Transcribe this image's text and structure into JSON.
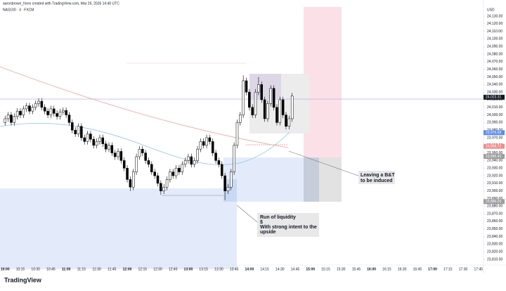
{
  "header": {
    "credit": "aaronbrown_forex created with TradingView.com, Mar 26, 2026 14:40 UTC",
    "symbol": "NAS100 · 3 · FXCM",
    "currency": "USD",
    "brand": "TradingView"
  },
  "chart_data": {
    "type": "candlestick",
    "x": [
      "10:00",
      "10:03",
      "10:06",
      "10:09",
      "10:12",
      "10:15",
      "10:18",
      "10:21",
      "10:24",
      "10:27",
      "10:30",
      "10:33",
      "10:36",
      "10:39",
      "10:42",
      "10:45",
      "10:48",
      "10:51",
      "10:54",
      "10:57",
      "11:00",
      "11:03",
      "11:06",
      "11:09",
      "11:12",
      "11:15",
      "11:18",
      "11:21",
      "11:24",
      "11:27",
      "11:30",
      "11:33",
      "11:36",
      "11:39",
      "11:42",
      "11:45",
      "11:48",
      "11:51",
      "11:54",
      "11:57",
      "12:00",
      "12:03",
      "12:06",
      "12:09",
      "12:12",
      "12:15",
      "12:18",
      "12:21",
      "12:24",
      "12:27",
      "12:30",
      "12:33",
      "12:36",
      "12:39",
      "12:42",
      "12:45",
      "12:48",
      "12:51",
      "12:54",
      "12:57",
      "13:00",
      "13:03",
      "13:06",
      "13:09",
      "13:12",
      "13:15",
      "13:18",
      "13:21",
      "13:24",
      "13:27",
      "13:30",
      "13:33",
      "13:36",
      "13:39",
      "13:42",
      "13:45",
      "13:48",
      "13:51",
      "13:54",
      "13:57",
      "14:00",
      "14:03",
      "14:06",
      "14:09",
      "14:12",
      "14:15",
      "14:18",
      "14:21",
      "14:24",
      "14:27",
      "14:30",
      "14:33",
      "14:36",
      "14:39",
      "14:42"
    ],
    "ohlc": [
      [
        23990,
        23999,
        23986,
        23995
      ],
      [
        23995,
        24004,
        23991,
        24000
      ],
      [
        24000,
        24004,
        23986,
        23990
      ],
      [
        23990,
        24002,
        23986,
        23998
      ],
      [
        23998,
        24009,
        23994,
        24005
      ],
      [
        24005,
        24009,
        23996,
        24000
      ],
      [
        24000,
        24012,
        23996,
        24008
      ],
      [
        24008,
        24016,
        24004,
        24012
      ],
      [
        24012,
        24016,
        24001,
        24005
      ],
      [
        24005,
        24014,
        24001,
        24010
      ],
      [
        24010,
        24019,
        24006,
        24015
      ],
      [
        24015,
        24022,
        24011,
        24018
      ],
      [
        24018,
        24022,
        24006,
        24010
      ],
      [
        24010,
        24014,
        24001,
        24005
      ],
      [
        24005,
        24009,
        23996,
        24000
      ],
      [
        24000,
        24012,
        23996,
        24008
      ],
      [
        24008,
        24012,
        23998,
        24002
      ],
      [
        24002,
        24006,
        23994,
        23998
      ],
      [
        23998,
        24008,
        23994,
        24004
      ],
      [
        24004,
        24010,
        24000,
        24006
      ],
      [
        24006,
        24010,
        23996,
        24000
      ],
      [
        24000,
        24004,
        23986,
        23990
      ],
      [
        23990,
        23994,
        23976,
        23980
      ],
      [
        23980,
        23984,
        23971,
        23975
      ],
      [
        23975,
        23989,
        23971,
        23985
      ],
      [
        23985,
        23989,
        23966,
        23970
      ],
      [
        23970,
        23974,
        23961,
        23965
      ],
      [
        23965,
        23979,
        23961,
        23975
      ],
      [
        23975,
        23979,
        23964,
        23968
      ],
      [
        23968,
        23972,
        23956,
        23960
      ],
      [
        23960,
        23969,
        23956,
        23965
      ],
      [
        23965,
        23974,
        23961,
        23970
      ],
      [
        23970,
        23974,
        23958,
        23962
      ],
      [
        23962,
        23966,
        23951,
        23955
      ],
      [
        23955,
        23964,
        23951,
        23960
      ],
      [
        23960,
        23964,
        23946,
        23950
      ],
      [
        23950,
        23954,
        23941,
        23945
      ],
      [
        23945,
        23956,
        23941,
        23952
      ],
      [
        23952,
        23956,
        23936,
        23940
      ],
      [
        23940,
        23944,
        23926,
        23930
      ],
      [
        23930,
        23934,
        23911,
        23915
      ],
      [
        23915,
        23919,
        23900,
        23905
      ],
      [
        23905,
        23929,
        23901,
        23925
      ],
      [
        23925,
        23949,
        23921,
        23945
      ],
      [
        23945,
        23959,
        23941,
        23955
      ],
      [
        23955,
        23959,
        23946,
        23950
      ],
      [
        23950,
        23954,
        23936,
        23940
      ],
      [
        23940,
        23944,
        23931,
        23935
      ],
      [
        23935,
        23939,
        23921,
        23925
      ],
      [
        23925,
        23929,
        23916,
        23920
      ],
      [
        23920,
        23924,
        23906,
        23910
      ],
      [
        23910,
        23914,
        23895,
        23900
      ],
      [
        23900,
        23909,
        23896,
        23905
      ],
      [
        23905,
        23919,
        23901,
        23915
      ],
      [
        23915,
        23929,
        23911,
        23925
      ],
      [
        23925,
        23929,
        23916,
        23920
      ],
      [
        23920,
        23934,
        23916,
        23930
      ],
      [
        23930,
        23934,
        23921,
        23925
      ],
      [
        23925,
        23939,
        23921,
        23935
      ],
      [
        23935,
        23944,
        23931,
        23940
      ],
      [
        23940,
        23949,
        23936,
        23945
      ],
      [
        23945,
        23949,
        23931,
        23935
      ],
      [
        23935,
        23944,
        23931,
        23940
      ],
      [
        23940,
        23959,
        23936,
        23955
      ],
      [
        23955,
        23969,
        23951,
        23965
      ],
      [
        23965,
        23969,
        23956,
        23960
      ],
      [
        23960,
        23974,
        23956,
        23970
      ],
      [
        23970,
        23974,
        23961,
        23965
      ],
      [
        23965,
        23969,
        23946,
        23950
      ],
      [
        23950,
        23954,
        23936,
        23940
      ],
      [
        23940,
        23944,
        23931,
        23935
      ],
      [
        23935,
        23939,
        23916,
        23920
      ],
      [
        23920,
        23924,
        23888,
        23900
      ],
      [
        23900,
        23909,
        23896,
        23905
      ],
      [
        23905,
        23929,
        23901,
        23925
      ],
      [
        23925,
        23964,
        23921,
        23960
      ],
      [
        23960,
        23994,
        23956,
        23990
      ],
      [
        23990,
        24004,
        23986,
        24000
      ],
      [
        24000,
        24052,
        23996,
        24045
      ],
      [
        24045,
        24049,
        24026,
        24030
      ],
      [
        24030,
        24034,
        24006,
        24010
      ],
      [
        24010,
        24014,
        23996,
        24000
      ],
      [
        24000,
        24034,
        23996,
        24030
      ],
      [
        24030,
        24050,
        24026,
        24040
      ],
      [
        24040,
        24044,
        24016,
        24020
      ],
      [
        24020,
        24024,
        23991,
        23995
      ],
      [
        23995,
        24019,
        23991,
        24015
      ],
      [
        24015,
        24039,
        24011,
        24035
      ],
      [
        24035,
        24039,
        24006,
        24010
      ],
      [
        24010,
        24014,
        23986,
        23990
      ],
      [
        23990,
        24024,
        23986,
        24020
      ],
      [
        24020,
        24024,
        23996,
        24000
      ],
      [
        24000,
        24004,
        23981,
        23985
      ],
      [
        23985,
        23999,
        23981,
        23995
      ],
      [
        23995,
        24029,
        23991,
        24025
      ]
    ],
    "up_color": "#ffffff",
    "down_color": "#000000",
    "xlim": [
      "09:55",
      "17:50"
    ],
    "xticks": [
      "10:00",
      "10:15",
      "10:30",
      "10:45",
      "11:00",
      "11:15",
      "11:30",
      "11:45",
      "12:00",
      "12:15",
      "12:30",
      "12:45",
      "13:00",
      "13:15",
      "13:30",
      "13:45",
      "14:00",
      "14:15",
      "14:30",
      "14:45",
      "15:00",
      "15:15",
      "15:30",
      "15:45",
      "16:00",
      "16:15",
      "16:30",
      "16:45",
      "17:00",
      "17:15",
      "17:30",
      "17:45"
    ],
    "ylim": [
      23797,
      24142
    ],
    "yticks": [
      {
        "value": 23810,
        "label": "23,810.00"
      },
      {
        "value": 23820,
        "label": "23,820.00"
      },
      {
        "value": 23830,
        "label": "23,830.00"
      },
      {
        "value": 23840,
        "label": "23,840.00"
      },
      {
        "value": 23850,
        "label": "23,850.00"
      },
      {
        "value": 23860,
        "label": "23,860.00"
      },
      {
        "value": 23870,
        "label": "23,870.00"
      },
      {
        "value": 23880,
        "label": "23,880.00"
      },
      {
        "value": 23890,
        "label": "23,890.00"
      },
      {
        "value": 23900,
        "label": "23,900.00"
      },
      {
        "value": 23910,
        "label": "23,910.00"
      },
      {
        "value": 23920,
        "label": "23,920.00"
      },
      {
        "value": 23930,
        "label": "23,930.00"
      },
      {
        "value": 23940,
        "label": "23,940.00"
      },
      {
        "value": 23950,
        "label": "23,950.00"
      },
      {
        "value": 23960,
        "label": "23,960.00"
      },
      {
        "value": 23970,
        "label": "23,970.00"
      },
      {
        "value": 23980,
        "label": "23,980.00"
      },
      {
        "value": 23990,
        "label": "23,990.00"
      },
      {
        "value": 24000,
        "label": "24,000.00"
      },
      {
        "value": 24010,
        "label": "24,010.00"
      },
      {
        "value": 24020,
        "label": "24,020.00"
      },
      {
        "value": 24030,
        "label": "24,030.00"
      },
      {
        "value": 24040,
        "label": "24,040.00"
      },
      {
        "value": 24050,
        "label": "24,050.00"
      },
      {
        "value": 24060,
        "label": "24,060.00"
      },
      {
        "value": 24070,
        "label": "24,070.00"
      },
      {
        "value": 24080,
        "label": "24,080.00"
      },
      {
        "value": 24090,
        "label": "24,090.00"
      },
      {
        "value": 24100,
        "label": "24,100.00"
      },
      {
        "value": 24110,
        "label": "24,110.00"
      },
      {
        "value": 24120,
        "label": "24,120.00"
      },
      {
        "value": 24130,
        "label": "24,130.00"
      }
    ],
    "grid": false,
    "price_labels": [
      {
        "value": 24023.31,
        "label": "24,023.31",
        "color": "#131722"
      },
      {
        "value": 23976.68,
        "label": "23,976.68",
        "color": "#5b8def"
      },
      {
        "value": 23958.72,
        "label": "23,958.72",
        "color": "#f28b8b"
      },
      {
        "value": 23945.41,
        "label": "23,945.41",
        "color": "#9e9e9e"
      },
      {
        "value": 23886.03,
        "label": "23,886.03",
        "color": "#9e9e9e"
      }
    ],
    "annotations": [
      {
        "lines": [
          "Leaving a B&T",
          "to be induced"
        ]
      },
      {
        "lines": [
          "Run of liquidity",
          "$",
          "With strong intent to the",
          "upside"
        ]
      }
    ]
  }
}
